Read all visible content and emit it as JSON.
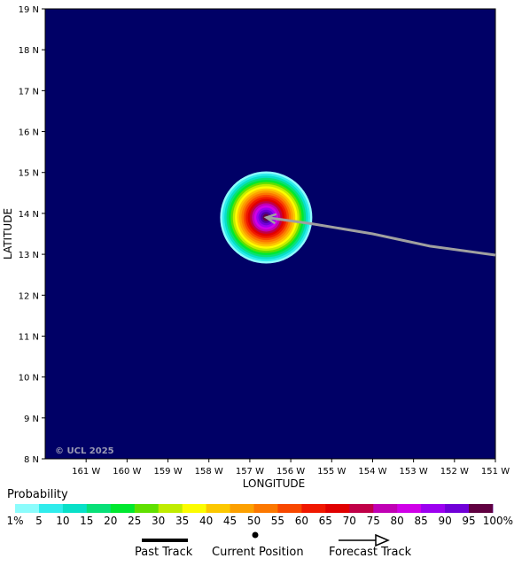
{
  "map": {
    "ocean_color": "#000066",
    "x_axis_title": "LONGITUDE",
    "y_axis_title": "LATITUDE",
    "copyright": "© UCL 2025",
    "lon_ticks": [
      "161 W",
      "160 W",
      "159 W",
      "158 W",
      "157 W",
      "156 W",
      "155 W",
      "154 W",
      "153 W",
      "152 W",
      "151 W"
    ],
    "lat_ticks": [
      "8 N",
      "9 N",
      "10 N",
      "11 N",
      "12 N",
      "13 N",
      "14 N",
      "15 N",
      "16 N",
      "17 N",
      "18 N",
      "19 N"
    ],
    "lon_range": [
      -162,
      -151
    ],
    "lat_range": [
      8,
      19
    ],
    "storm_center": {
      "lon": -156.6,
      "lat": 13.9
    },
    "forecast_track": [
      {
        "lon": -156.6,
        "lat": 13.9
      },
      {
        "lon": -155.5,
        "lat": 13.75
      },
      {
        "lon": -154.0,
        "lat": 13.5
      },
      {
        "lon": -152.6,
        "lat": 13.2
      },
      {
        "lon": -151.0,
        "lat": 12.98
      }
    ],
    "track_color": "#a0a0a0"
  },
  "legend": {
    "title": "Probability",
    "labels": [
      "1%",
      "5",
      "10",
      "15",
      "20",
      "25",
      "30",
      "35",
      "40",
      "45",
      "50",
      "55",
      "60",
      "65",
      "70",
      "75",
      "80",
      "85",
      "90",
      "95",
      "100%"
    ],
    "colors": [
      "#8cfcfc",
      "#30ecec",
      "#08e0c8",
      "#08e078",
      "#00e830",
      "#60e000",
      "#c0ec00",
      "#fcfc00",
      "#fcc800",
      "#fca000",
      "#fc7800",
      "#f84800",
      "#f01800",
      "#e00000",
      "#c00048",
      "#c000b4",
      "#d000e8",
      "#9c00f0",
      "#7000d8",
      "#5000a0",
      "#600040"
    ]
  },
  "key": {
    "past_track": "Past Track",
    "current_position": "Current Position",
    "forecast_track": "Forecast Track"
  }
}
